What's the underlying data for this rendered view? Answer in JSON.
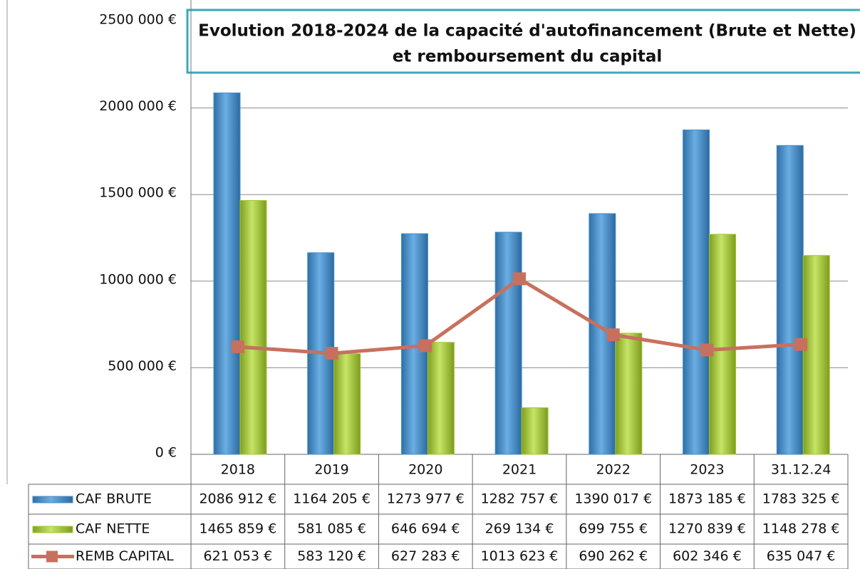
{
  "chart_data": {
    "type": "bar",
    "title": [
      "Evolution 2018-2024 de la capacité d'autofinancement (Brute et Nette)",
      "et remboursement du capital"
    ],
    "categories": [
      "2018",
      "2019",
      "2020",
      "2021",
      "2022",
      "2023",
      "31.12.24"
    ],
    "series": [
      {
        "name": "CAF BRUTE",
        "type": "bar",
        "color": "#4a8cc6",
        "values": [
          2086912,
          1164205,
          1273977,
          1282757,
          1390017,
          1873185,
          1783325
        ],
        "value_labels": [
          "2086 912 €",
          "1164 205 €",
          "1273 977 €",
          "1282 757 €",
          "1390 017 €",
          "1873 185 €",
          "1783 325 €"
        ]
      },
      {
        "name": "CAF NETTE",
        "type": "bar",
        "color": "#a5c83a",
        "values": [
          1465859,
          581085,
          646694,
          269134,
          699755,
          1270839,
          1148278
        ],
        "value_labels": [
          "1465 859 €",
          "581 085 €",
          "646 694 €",
          "269 134 €",
          "699 755 €",
          "1270 839 €",
          "1148 278 €"
        ]
      },
      {
        "name": "REMB CAPITAL",
        "type": "line",
        "color": "#c8705e",
        "values": [
          621053,
          583120,
          627283,
          1013623,
          690262,
          602346,
          635047
        ],
        "value_labels": [
          "621 053 €",
          "583 120 €",
          "627 283 €",
          "1013 623 €",
          "690 262 €",
          "602 346 €",
          "635 047 €"
        ]
      }
    ],
    "ylim": [
      0,
      2500000
    ],
    "yticks": [
      {
        "value": 0,
        "label": "0 €"
      },
      {
        "value": 500000,
        "label": "500 000 €"
      },
      {
        "value": 1000000,
        "label": "1000 000 €"
      },
      {
        "value": 1500000,
        "label": "1500 000 €"
      },
      {
        "value": 2000000,
        "label": "2000 000 €"
      },
      {
        "value": 2500000,
        "label": "2500 000 €"
      }
    ],
    "grid": true
  }
}
